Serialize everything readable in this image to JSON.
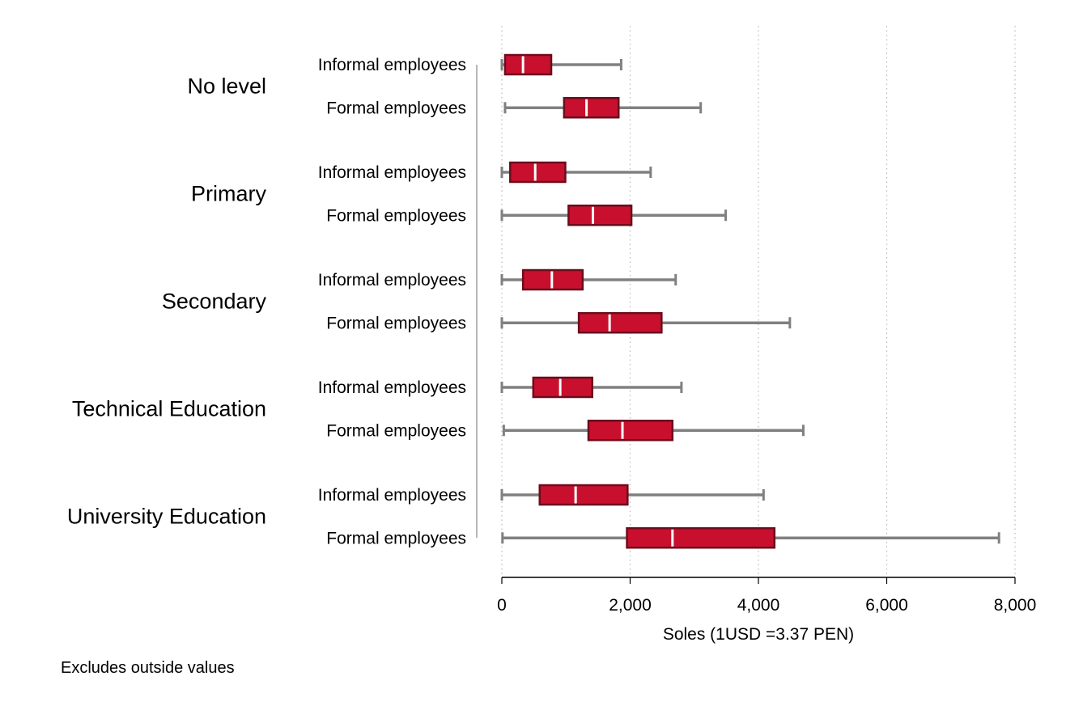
{
  "chart_data": {
    "type": "boxplot",
    "orientation": "horizontal",
    "xlabel": "Soles (1USD =3.37 PEN)",
    "xlim": [
      0,
      8000
    ],
    "xticks": [
      0,
      2000,
      4000,
      6000,
      8000
    ],
    "xtick_labels": [
      "0",
      "2,000",
      "4,000",
      "6,000",
      "8,000"
    ],
    "grid": "vertical dotted",
    "note": "Excludes outside values",
    "box_color": "#c8102e",
    "box_edge_color": "#6b0c1c",
    "whisker_color": "#808080",
    "groups": [
      {
        "name": "No level",
        "rows": [
          {
            "name": "Informal employees",
            "whisker_low": 0,
            "q1": 50,
            "median": 330,
            "q3": 770,
            "whisker_high": 1860
          },
          {
            "name": "Formal employees",
            "whisker_low": 50,
            "q1": 970,
            "median": 1320,
            "q3": 1820,
            "whisker_high": 3100
          }
        ]
      },
      {
        "name": "Primary",
        "rows": [
          {
            "name": "Informal employees",
            "whisker_low": 0,
            "q1": 130,
            "median": 520,
            "q3": 990,
            "whisker_high": 2320
          },
          {
            "name": "Formal employees",
            "whisker_low": 0,
            "q1": 1040,
            "median": 1420,
            "q3": 2020,
            "whisker_high": 3490
          }
        ]
      },
      {
        "name": "Secondary",
        "rows": [
          {
            "name": "Informal employees",
            "whisker_low": 0,
            "q1": 330,
            "median": 780,
            "q3": 1260,
            "whisker_high": 2710
          },
          {
            "name": "Formal employees",
            "whisker_low": 0,
            "q1": 1200,
            "median": 1680,
            "q3": 2490,
            "whisker_high": 4490
          }
        ]
      },
      {
        "name": "Technical Education",
        "rows": [
          {
            "name": "Informal employees",
            "whisker_low": 0,
            "q1": 490,
            "median": 910,
            "q3": 1410,
            "whisker_high": 2800
          },
          {
            "name": "Formal employees",
            "whisker_low": 30,
            "q1": 1350,
            "median": 1880,
            "q3": 2660,
            "whisker_high": 4700
          }
        ]
      },
      {
        "name": "University Education",
        "rows": [
          {
            "name": "Informal employees",
            "whisker_low": 0,
            "q1": 590,
            "median": 1150,
            "q3": 1960,
            "whisker_high": 4080
          },
          {
            "name": "Formal employees",
            "whisker_low": 10,
            "q1": 1950,
            "median": 2660,
            "q3": 4250,
            "whisker_high": 7750
          }
        ]
      }
    ]
  }
}
